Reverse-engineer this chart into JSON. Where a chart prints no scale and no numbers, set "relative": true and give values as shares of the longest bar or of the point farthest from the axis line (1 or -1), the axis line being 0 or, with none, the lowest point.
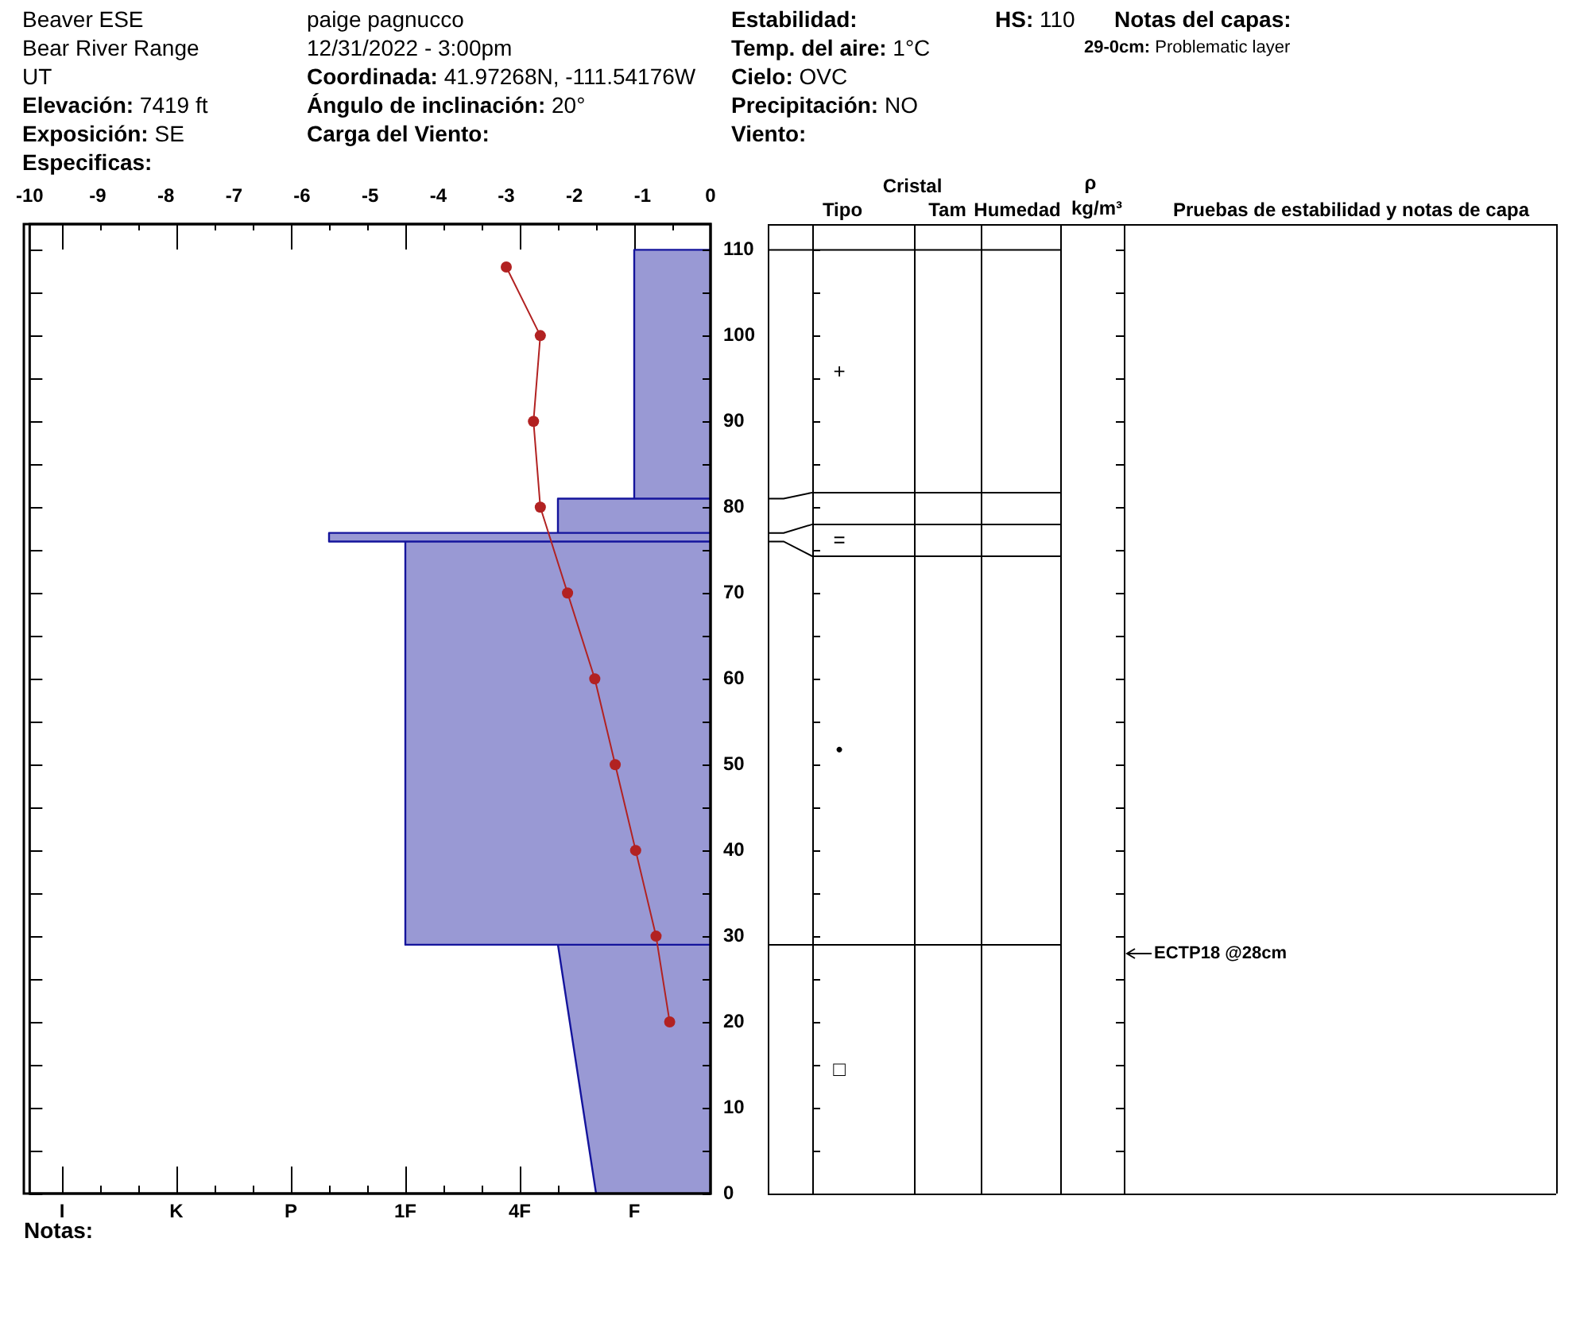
{
  "chart_data": [
    {
      "type": "line",
      "annotations": [
        "Beaver ESE",
        "Bear River Range",
        "UT",
        "Elevación: 7419 ft",
        "Exposición: SE",
        "Especificas:",
        "paige pagnucco",
        "12/31/2022 - 3:00pm",
        "Coordinada: 41.97268N, -111.54176W",
        "Ángulo de inclinación: 20°",
        "Carga del Viento:",
        "Estabilidad:",
        "Temp. del aire: 1°C",
        "Cielo: OVC",
        "Precipitación: NO",
        "Viento:",
        "HS: 110",
        "Notas del capas:",
        "29-0cm: Problematic layer",
        "Notas:",
        "Cristal",
        "Tipo",
        "Tam",
        "Humedad",
        "ρ",
        "kg/m³",
        "Pruebas de estabilidad y notas de capa",
        "+",
        "=",
        "•",
        "□",
        "ECTP18 @28cm"
      ],
      "xlim": [
        -10,
        0
      ],
      "xticks": [
        -10,
        -9,
        -8,
        -7,
        -6,
        -5,
        -4,
        -3,
        -2,
        -1,
        0
      ],
      "ylim": [
        0,
        113
      ],
      "yticks": [
        0,
        {
          "value": 5,
          "label": null
        },
        10,
        {
          "value": 15,
          "label": null
        },
        20,
        {
          "value": 25,
          "label": null
        },
        30,
        {
          "value": 35,
          "label": null
        },
        40,
        {
          "value": 45,
          "label": null
        },
        50,
        {
          "value": 55,
          "label": null
        },
        60,
        {
          "value": 65,
          "label": null
        },
        70,
        {
          "value": 75,
          "label": null
        },
        80,
        {
          "value": 85,
          "label": null
        },
        90,
        {
          "value": 95,
          "label": null
        },
        100,
        {
          "value": 105,
          "label": null
        },
        110
      ],
      "series": [
        {
          "type": "line",
          "color": "#b22222",
          "marker": "circle",
          "x": [
            -3.0,
            -2.5,
            -2.6,
            -2.5,
            -2.1,
            -1.7,
            -1.4,
            -1.1,
            -0.8,
            -0.6
          ],
          "values": [
            108,
            100,
            90,
            80,
            70,
            60,
            50,
            40,
            30,
            20
          ]
        }
      ]
    },
    {
      "type": "area",
      "orientation": "horizontal",
      "relative": true,
      "tick_labels": "x",
      "ylim": [
        0,
        113
      ],
      "annotations": [
        "I",
        "K",
        "P",
        "1F",
        "4F",
        "F"
      ],
      "series": [
        {
          "color": "#9999d4",
          "x": [
            110,
            110,
            81,
            81,
            81,
            77,
            77,
            77,
            76,
            76,
            76,
            29,
            29,
            29,
            0
          ],
          "values": [
            0,
            -0.2,
            -0.2,
            0,
            -0.4,
            -0.4,
            0,
            -1,
            -1,
            0,
            -0.8,
            -0.8,
            0,
            -0.4,
            -0.3
          ]
        }
      ]
    }
  ]
}
